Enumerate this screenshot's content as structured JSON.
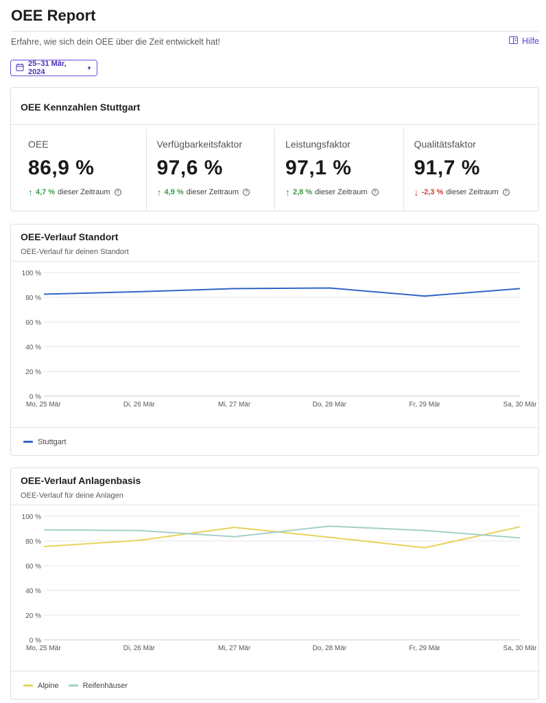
{
  "header": {
    "title": "OEE Report",
    "subtitle": "Erfahre, wie sich dein OEE über die Zeit entwickelt hat!",
    "help_label": "Hilfe",
    "date_range": "25–31 Mär, 2024",
    "accent_color": "#5a3fd6"
  },
  "kpi_card": {
    "title": "OEE Kennzahlen Stuttgart",
    "period_text": "dieser Zeitraum",
    "items": [
      {
        "label": "OEE",
        "value": "86,9 %",
        "delta": "4,7 %",
        "direction": "up"
      },
      {
        "label": "Verfügbarkeitsfaktor",
        "value": "97,6 %",
        "delta": "4,9 %",
        "direction": "up"
      },
      {
        "label": "Leistungsfaktor",
        "value": "97,1 %",
        "delta": "2,8 %",
        "direction": "up"
      },
      {
        "label": "Qualitätsfaktor",
        "value": "91,7 %",
        "delta": "-2,3 %",
        "direction": "down"
      }
    ]
  },
  "chart_data": [
    {
      "type": "line",
      "title": "OEE-Verlauf Standort",
      "subtitle": "OEE-Verlauf für deinen Standort",
      "x": [
        "Mo, 25 Mär",
        "Di, 26 Mär",
        "Mi, 27 Mär",
        "Do, 28 Mär",
        "Fr, 29 Mär",
        "Sa, 30 Mär"
      ],
      "yticks": [
        "0 %",
        "20 %",
        "40 %",
        "60 %",
        "80 %",
        "100 %"
      ],
      "ylim": [
        0,
        100
      ],
      "grid": true,
      "legend": "bottom-left",
      "series": [
        {
          "name": "Stuttgart",
          "color": "#2f64c8",
          "values": [
            82.5,
            84.5,
            87,
            87.5,
            81,
            87
          ]
        }
      ]
    },
    {
      "type": "line",
      "title": "OEE-Verlauf Anlagenbasis",
      "subtitle": "OEE-Verlauf für deine Anlagen",
      "x": [
        "Mo, 25 Mär",
        "Di, 26 Mär",
        "Mi, 27 Mär",
        "Do, 28 Mär",
        "Fr, 29 Mär",
        "Sa, 30 Mär"
      ],
      "yticks": [
        "0 %",
        "20 %",
        "40 %",
        "60 %",
        "80 %",
        "100 %"
      ],
      "ylim": [
        0,
        100
      ],
      "grid": true,
      "legend": "bottom-left",
      "series": [
        {
          "name": "Alpine",
          "color": "#e6d35a",
          "values": [
            75.5,
            80.5,
            91,
            83,
            74.5,
            91.5
          ]
        },
        {
          "name": "Reifenhäuser",
          "color": "#a3cfc9",
          "values": [
            89,
            88.5,
            83.5,
            92,
            88.5,
            82.5
          ]
        }
      ]
    }
  ]
}
